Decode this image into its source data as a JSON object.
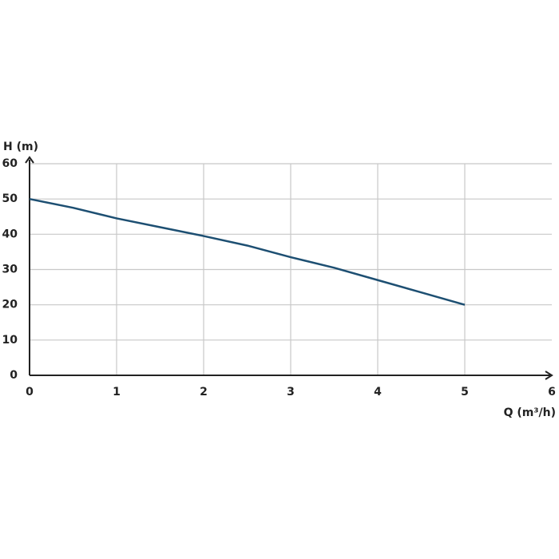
{
  "chart_data": {
    "type": "line",
    "y_label": "H (m)",
    "x_label": "Q (m³/h)",
    "x": [
      0,
      0.5,
      1,
      1.5,
      2,
      2.5,
      3,
      3.5,
      4,
      4.5,
      5
    ],
    "series": [
      {
        "color": "#1d4f72",
        "values": [
          50,
          47.5,
          44.5,
          42,
          39.5,
          36.8,
          33.5,
          30.5,
          27,
          23.5,
          20
        ]
      }
    ],
    "xlim": [
      0,
      6
    ],
    "xticks": [
      0,
      1,
      2,
      3,
      4,
      5,
      6
    ],
    "ylim": [
      0,
      60
    ],
    "yticks": [
      0,
      10,
      20,
      30,
      40,
      50,
      60
    ],
    "grid": true
  }
}
